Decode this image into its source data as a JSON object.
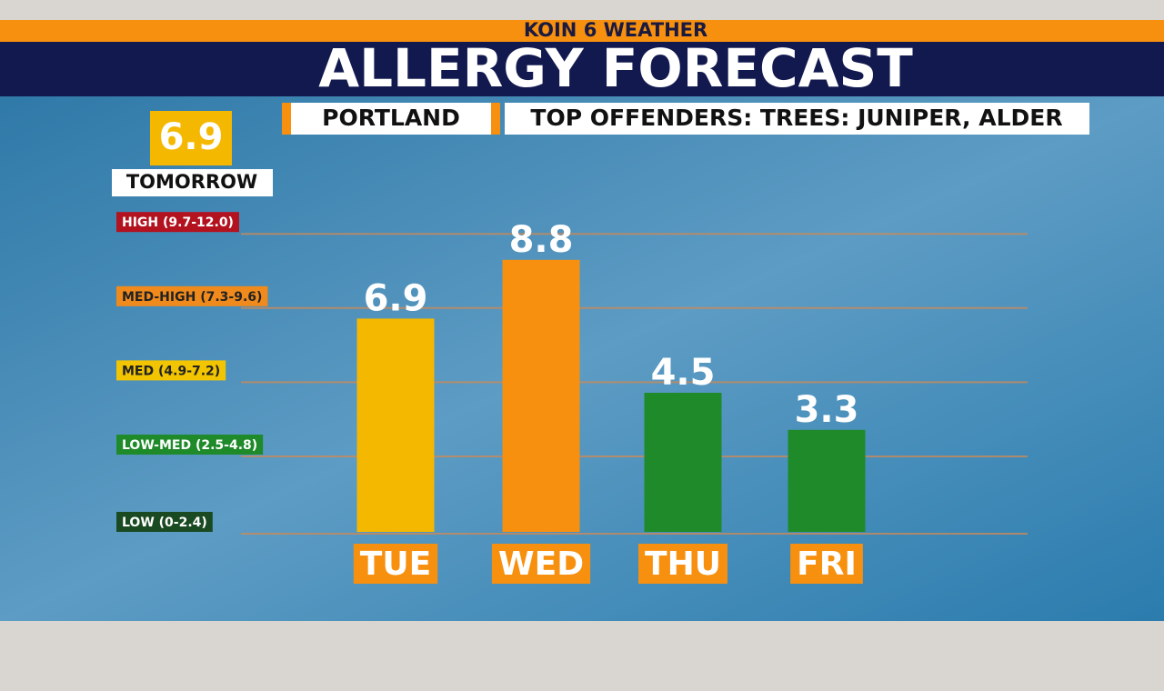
{
  "network": "KOIN 6 WEATHER",
  "chart_data": {
    "type": "bar",
    "title": "ALLERGY FORECAST",
    "location": "PORTLAND",
    "subtitle": "TOP OFFENDERS: TREES: JUNIPER, ALDER",
    "tomorrow": {
      "value": 6.9,
      "label": "TOMORROW",
      "color": "#f5b800"
    },
    "categories": [
      "TUE",
      "WED",
      "THU",
      "FRI"
    ],
    "values": [
      6.9,
      8.8,
      4.5,
      3.3
    ],
    "colors": [
      "#f5b800",
      "#f7900f",
      "#1e8a2a",
      "#1e8a2a"
    ],
    "ylim": [
      0,
      12
    ],
    "yticks": [
      {
        "value": 0,
        "label": "LOW (0-2.4)"
      },
      {
        "value": 2.5,
        "label": "LOW-MED (2.5-4.8)"
      },
      {
        "value": 4.9,
        "label": "MED (4.9-7.2)"
      },
      {
        "value": 7.3,
        "label": "MED-HIGH (7.3-9.6)"
      },
      {
        "value": 9.7,
        "label": "HIGH (9.7-12.0)"
      }
    ],
    "ytick_colors": [
      "#1a4a22",
      "#1e8a2a",
      "#f2c500",
      "#f08a1c",
      "#b3121f"
    ],
    "grid": true
  }
}
